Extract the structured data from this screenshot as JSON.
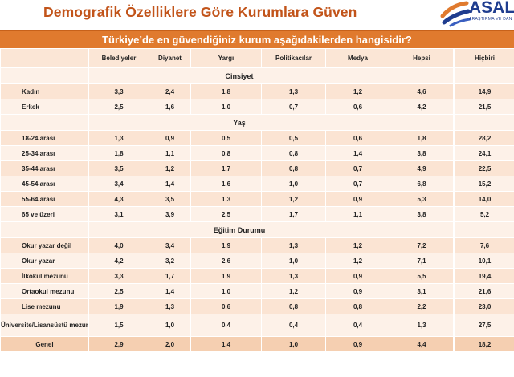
{
  "title": "Demografik Özelliklere Göre Kurumlara Güven",
  "logo": {
    "text": "ASAL",
    "subtitle": "ARAŞTIRMA VE DAN"
  },
  "question": "Türkiye’de en güvendiğiniz kurum aşağıdakilerden hangisidir?",
  "columns": [
    "Belediyeler",
    "Diyanet",
    "Yargı",
    "Politikacılar",
    "Medya",
    "Hepsi",
    "Hiçbiri"
  ],
  "sections": [
    {
      "name": "Cinsiyet",
      "rows": [
        {
          "label": "Kadın",
          "values": [
            "3,3",
            "2,4",
            "1,8",
            "1,3",
            "1,2",
            "4,6",
            "14,9"
          ]
        },
        {
          "label": "Erkek",
          "values": [
            "2,5",
            "1,6",
            "1,0",
            "0,7",
            "0,6",
            "4,2",
            "21,5"
          ]
        }
      ]
    },
    {
      "name": "Yaş",
      "rows": [
        {
          "label": "18-24 arası",
          "values": [
            "1,3",
            "0,9",
            "0,5",
            "0,5",
            "0,6",
            "1,8",
            "28,2"
          ]
        },
        {
          "label": "25-34 arası",
          "values": [
            "1,8",
            "1,1",
            "0,8",
            "0,8",
            "1,4",
            "3,8",
            "24,1"
          ]
        },
        {
          "label": "35-44 arası",
          "values": [
            "3,5",
            "1,2",
            "1,7",
            "0,8",
            "0,7",
            "4,9",
            "22,5"
          ]
        },
        {
          "label": "45-54 arası",
          "values": [
            "3,4",
            "1,4",
            "1,6",
            "1,0",
            "0,7",
            "6,8",
            "15,2"
          ]
        },
        {
          "label": "55-64 arası",
          "values": [
            "4,3",
            "3,5",
            "1,3",
            "1,2",
            "0,9",
            "5,3",
            "14,0"
          ]
        },
        {
          "label": "65 ve üzeri",
          "values": [
            "3,1",
            "3,9",
            "2,5",
            "1,7",
            "1,1",
            "3,8",
            "5,2"
          ]
        }
      ]
    },
    {
      "name": "Eğitim Durumu",
      "rows": [
        {
          "label": "Okur yazar değil",
          "values": [
            "4,0",
            "3,4",
            "1,9",
            "1,3",
            "1,2",
            "7,2",
            "7,6"
          ]
        },
        {
          "label": "Okur yazar",
          "values": [
            "4,2",
            "3,2",
            "2,6",
            "1,0",
            "1,2",
            "7,1",
            "10,1"
          ]
        },
        {
          "label": "İlkokul mezunu",
          "values": [
            "3,3",
            "1,7",
            "1,9",
            "1,3",
            "0,9",
            "5,5",
            "19,4"
          ]
        },
        {
          "label": "Ortaokul mezunu",
          "values": [
            "2,5",
            "1,4",
            "1,0",
            "1,2",
            "0,9",
            "3,1",
            "21,6"
          ]
        },
        {
          "label": "Lise mezunu",
          "values": [
            "1,9",
            "1,3",
            "0,6",
            "0,8",
            "0,8",
            "2,2",
            "23,0"
          ]
        },
        {
          "label": "Üniversite/Lisansüstü mezunu",
          "values": [
            "1,5",
            "1,0",
            "0,4",
            "0,4",
            "0,4",
            "1,3",
            "27,5"
          ]
        }
      ]
    }
  ],
  "total": {
    "label": "Genel",
    "values": [
      "2,9",
      "2,0",
      "1,4",
      "1,0",
      "0,9",
      "4,4",
      "18,2"
    ]
  },
  "colors": {
    "title": "#c2541a",
    "bar": "#e07a2e",
    "logo": "#1f3d8f"
  }
}
